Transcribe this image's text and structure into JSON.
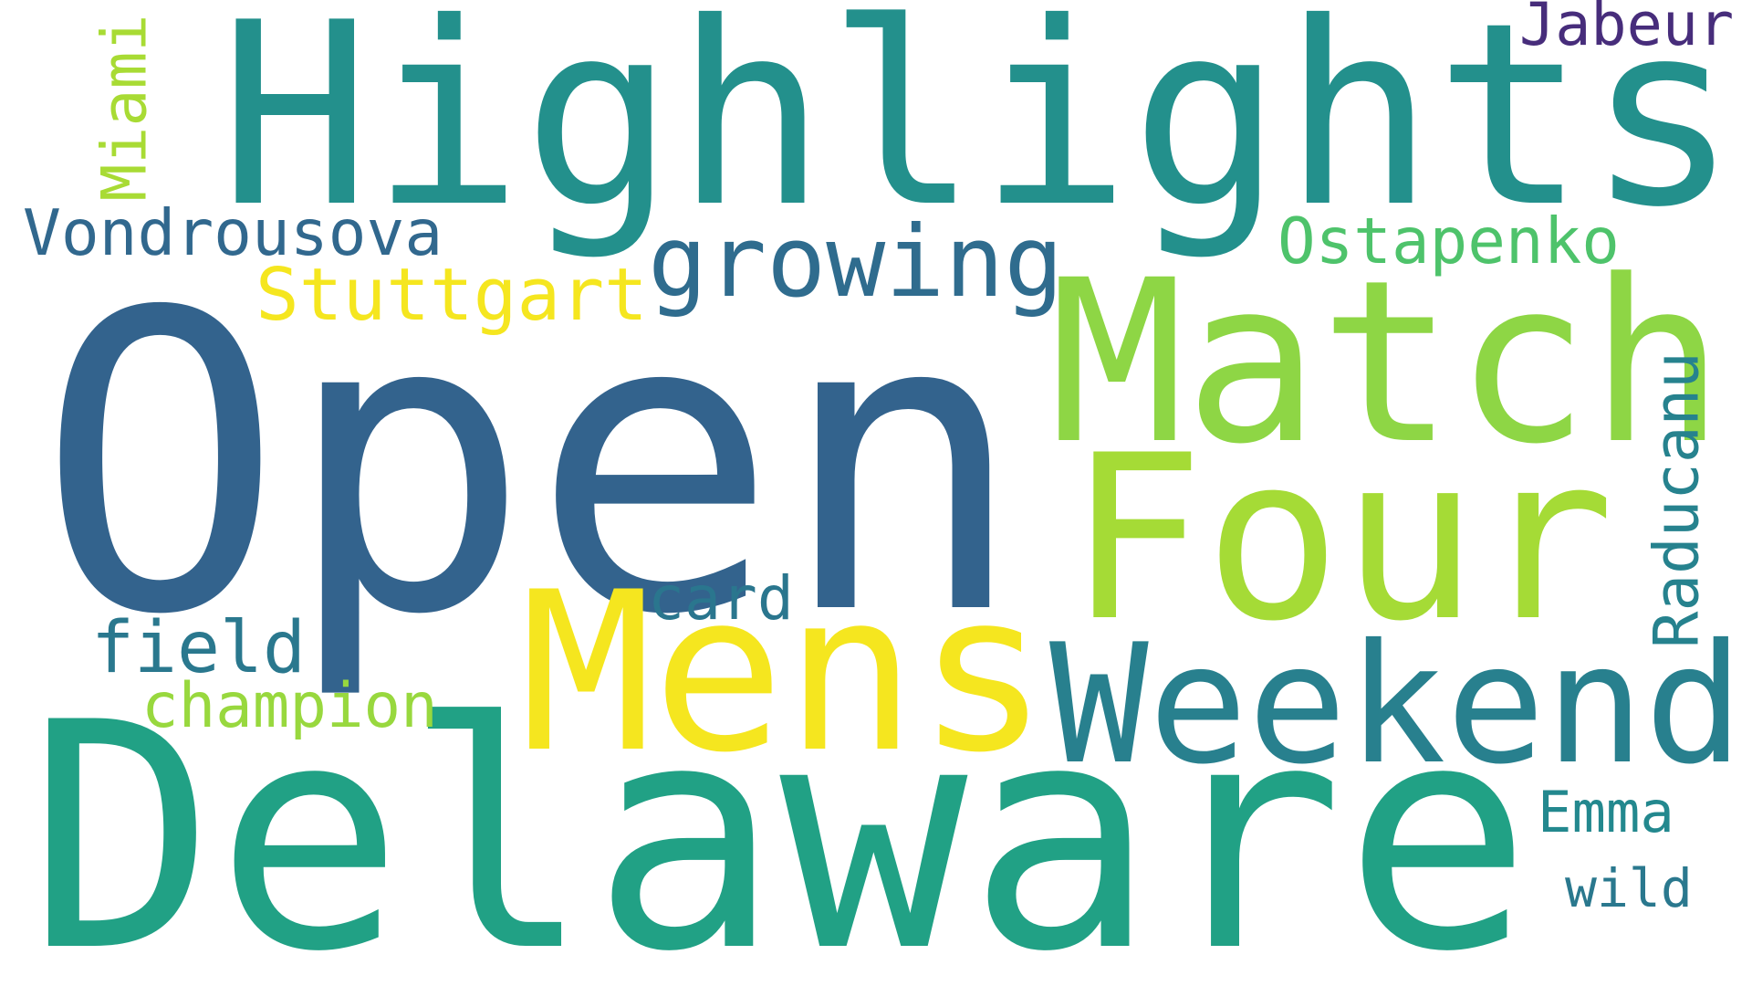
{
  "words": [
    {
      "id": "highlights",
      "text": "Highlights",
      "color": "#23908c",
      "vertical": false
    },
    {
      "id": "open",
      "text": "Open",
      "color": "#33638d",
      "vertical": false
    },
    {
      "id": "delaware",
      "text": "Delaware",
      "color": "#21a185",
      "vertical": false
    },
    {
      "id": "match",
      "text": "Match",
      "color": "#8ed645",
      "vertical": false
    },
    {
      "id": "four",
      "text": "Four",
      "color": "#a5db36",
      "vertical": false
    },
    {
      "id": "mens",
      "text": "Mens",
      "color": "#f5e61f",
      "vertical": false
    },
    {
      "id": "weekend",
      "text": "Weekend",
      "color": "#28808e",
      "vertical": false
    },
    {
      "id": "growing",
      "text": "growing",
      "color": "#2f6c8e",
      "vertical": false
    },
    {
      "id": "stuttgart",
      "text": "Stuttgart",
      "color": "#f5e61f",
      "vertical": false
    },
    {
      "id": "vondrousova",
      "text": "Vondrousova",
      "color": "#31688e",
      "vertical": false
    },
    {
      "id": "ostapenko",
      "text": "Ostapenko",
      "color": "#4ec36b",
      "vertical": false
    },
    {
      "id": "jabeur",
      "text": "Jabeur",
      "color": "#472d7b",
      "vertical": false
    },
    {
      "id": "miami",
      "text": "Miami",
      "color": "#a8db34",
      "vertical": true
    },
    {
      "id": "raducanu",
      "text": "Raducanu",
      "color": "#26828e",
      "vertical": true
    },
    {
      "id": "card",
      "text": "card",
      "color": "#2a768e",
      "vertical": false
    },
    {
      "id": "field",
      "text": "field",
      "color": "#2a788e",
      "vertical": false
    },
    {
      "id": "champion",
      "text": "champion",
      "color": "#98d83e",
      "vertical": false
    },
    {
      "id": "emma",
      "text": "Emma",
      "color": "#23888e",
      "vertical": false
    },
    {
      "id": "wild",
      "text": "wild",
      "color": "#2a788e",
      "vertical": false
    }
  ]
}
